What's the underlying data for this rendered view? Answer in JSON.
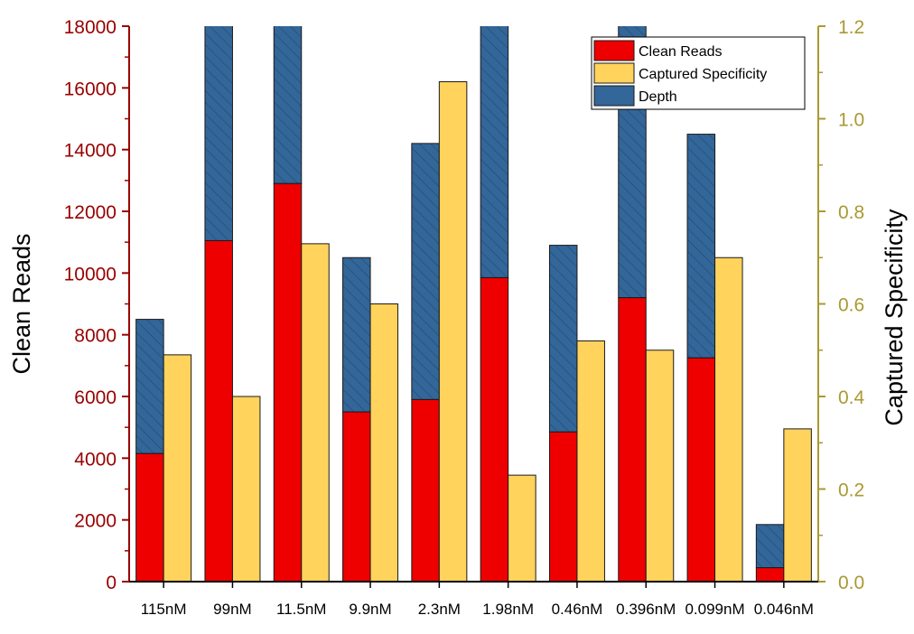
{
  "chart_data": {
    "type": "bar",
    "categories": [
      "115nM",
      "99nM",
      "11.5nM",
      "9.9nM",
      "2.3nM",
      "1.98nM",
      "0.46nM",
      "0.396nM",
      "0.099nM",
      "0.046nM"
    ],
    "series": [
      {
        "name": "Clean Reads",
        "axis": "left",
        "stack": "left",
        "values": [
          4150,
          11050,
          12900,
          5500,
          5900,
          9850,
          4850,
          9200,
          7250,
          450
        ]
      },
      {
        "name": "Depth",
        "axis": "left",
        "stack": "left",
        "values": [
          4350,
          7300,
          5600,
          5000,
          8300,
          8600,
          6050,
          9000,
          7250,
          1400
        ]
      },
      {
        "name": "Captured Specificity",
        "axis": "right",
        "stack": "right",
        "values": [
          0.49,
          0.4,
          0.73,
          0.6,
          1.08,
          0.23,
          0.52,
          0.5,
          0.7,
          0.33
        ]
      }
    ],
    "legend": [
      "Clean Reads",
      "Captured Specificity",
      "Depth"
    ],
    "ylabel": "Clean Reads",
    "y2label": "Captured Specificity",
    "xlabel": "",
    "ylim": [
      0,
      18000
    ],
    "y2lim": [
      0,
      1.2
    ],
    "yticks": [
      "0",
      "2000",
      "4000",
      "6000",
      "8000",
      "10000",
      "12000",
      "14000",
      "16000",
      "18000"
    ],
    "y2ticks": [
      "0.0",
      "0.2",
      "0.4",
      "0.6",
      "0.8",
      "1.0",
      "1.2"
    ],
    "legend_position": "top-right",
    "colors": {
      "clean_reads": "#ee0000",
      "captured_specificity": "#ffd35c",
      "depth": "#336699",
      "left_axis": "#990000",
      "right_axis": "#aa9933"
    }
  }
}
